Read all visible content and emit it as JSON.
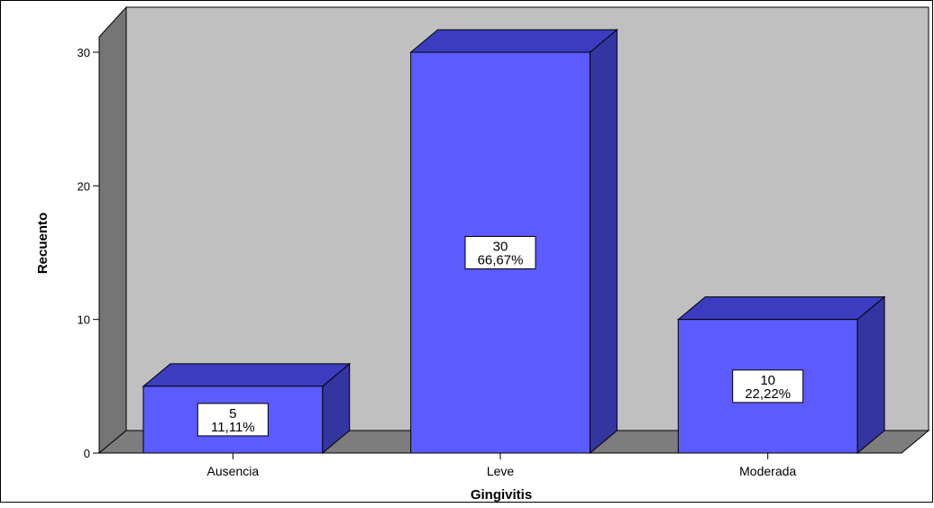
{
  "chart_data": {
    "type": "bar",
    "style": "3d",
    "categories": [
      "Ausencia",
      "Leve",
      "Moderada"
    ],
    "values": [
      5,
      30,
      10
    ],
    "data_labels": [
      {
        "count": "5",
        "percent": "11,11%"
      },
      {
        "count": "30",
        "percent": "66,67%"
      },
      {
        "count": "10",
        "percent": "22,22%"
      }
    ],
    "title": "",
    "xlabel": "Gingivitis",
    "ylabel": "Recuento",
    "ylim": [
      0,
      30
    ],
    "yticks": [
      0,
      10,
      20,
      30
    ],
    "grid": false,
    "legend": "none"
  },
  "colors": {
    "bar_front": "#5b5bff",
    "bar_top": "#3c3cc0",
    "bar_side": "#3535a2",
    "plot_back": "#c0c0c0",
    "wall_side": "#757575",
    "floor": "#7d7d7d"
  }
}
